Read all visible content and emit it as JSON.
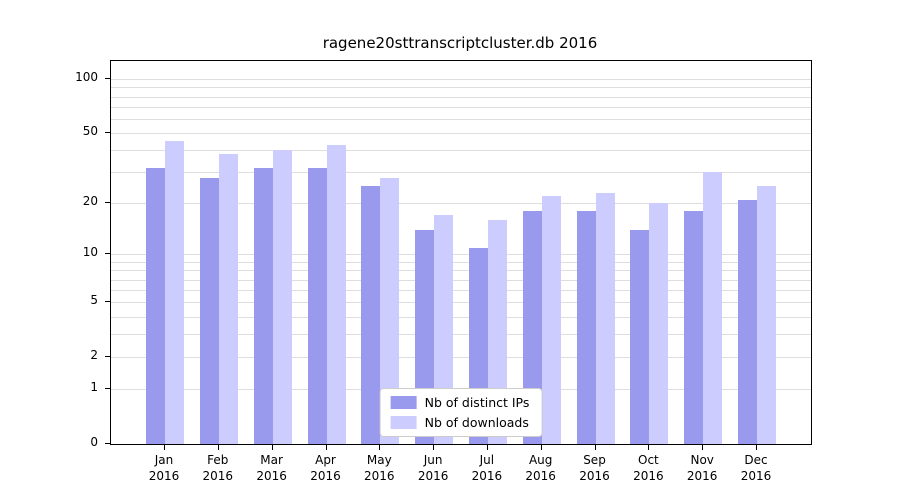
{
  "chart_data": {
    "type": "bar",
    "title": "ragene20sttranscriptcluster.db 2016",
    "scale": "log1p",
    "grid": true,
    "legend_position": "bottom-center",
    "grid_color": "#dedede",
    "axis_color": "#000000",
    "categories": [
      "Jan",
      "Feb",
      "Mar",
      "Apr",
      "May",
      "Jun",
      "Jul",
      "Aug",
      "Sep",
      "Oct",
      "Nov",
      "Dec"
    ],
    "year": "2016",
    "series": [
      {
        "name": "Nb of distinct IPs",
        "color": "#9999ee",
        "values": [
          32,
          28,
          32,
          32,
          25,
          14,
          11,
          18,
          18,
          14,
          18,
          21
        ]
      },
      {
        "name": "Nb of downloads",
        "color": "#ccccff",
        "values": [
          45,
          38,
          40,
          43,
          28,
          17,
          16,
          22,
          23,
          20,
          30,
          25
        ]
      }
    ],
    "yticks": [
      0,
      1,
      2,
      5,
      10,
      20,
      50,
      100
    ],
    "gridlines": [
      1,
      2,
      3,
      4,
      5,
      6,
      7,
      8,
      9,
      10,
      20,
      30,
      40,
      50,
      60,
      70,
      80,
      90,
      100
    ],
    "ylim": [
      0,
      120
    ]
  }
}
